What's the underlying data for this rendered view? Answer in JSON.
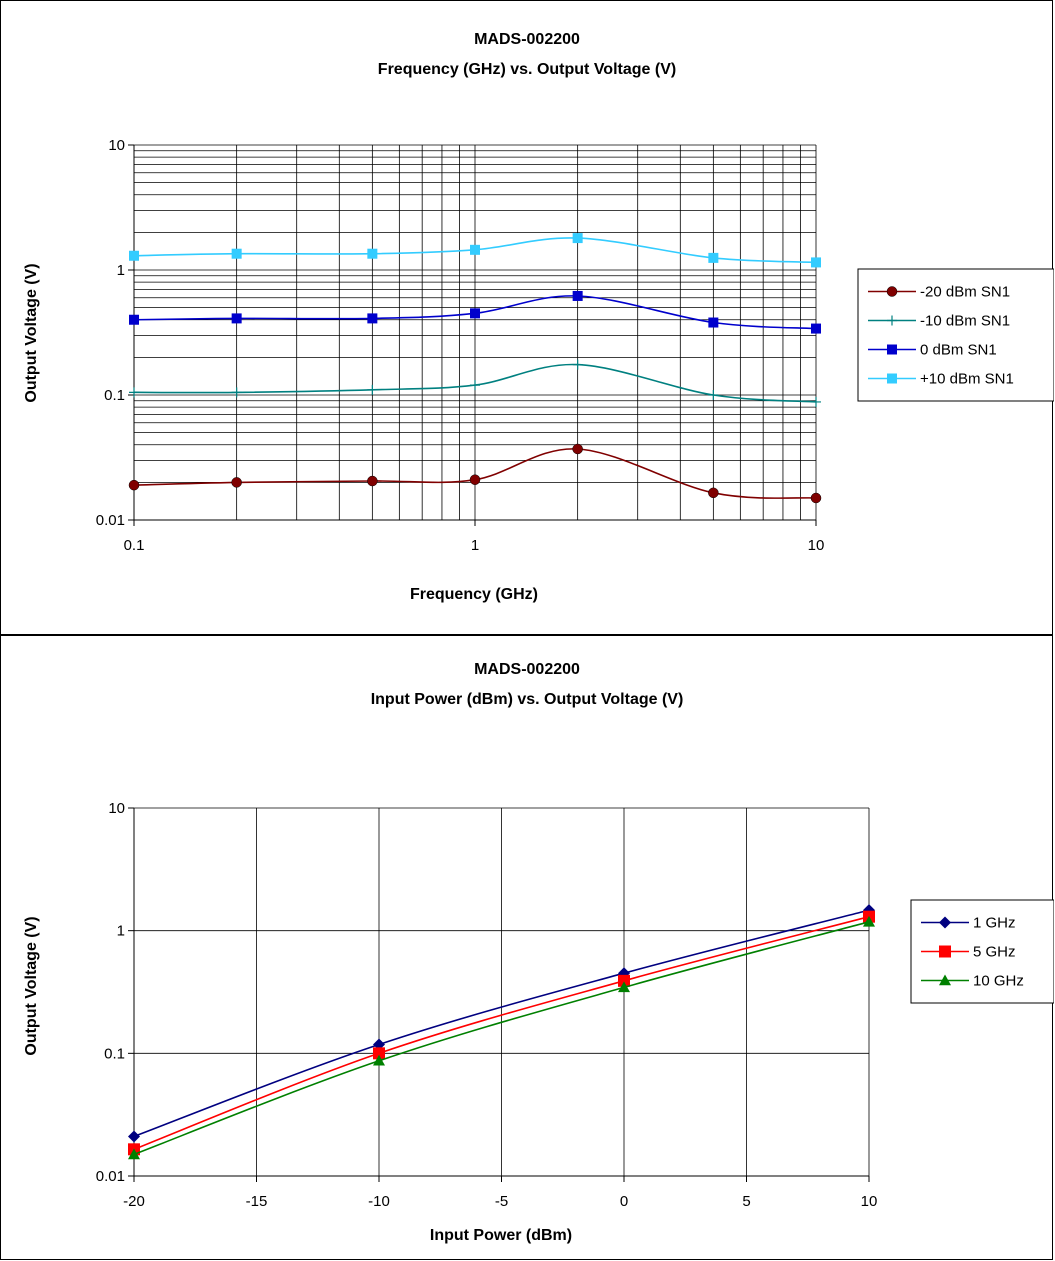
{
  "chart_data": [
    {
      "type": "line",
      "title": "MADS-002200",
      "subtitle": "Frequency (GHz) vs. Output Voltage (V)",
      "xlabel": "Frequency  (GHz)",
      "ylabel": "Output Voltage (V)",
      "xscale": "log",
      "yscale": "log",
      "xlim": [
        0.1,
        10
      ],
      "ylim": [
        0.01,
        10
      ],
      "xticks": [
        "0.1",
        "1",
        "10"
      ],
      "yticks": [
        "0.01",
        "0.1",
        "1",
        "10"
      ],
      "grid": true,
      "legend": "right",
      "series": [
        {
          "name": "-20 dBm SN1",
          "color": "#800000",
          "marker": "circle",
          "x": [
            0.1,
            0.2,
            0.5,
            1,
            2,
            5,
            10
          ],
          "y": [
            0.019,
            0.02,
            0.0205,
            0.021,
            0.037,
            0.0165,
            0.015
          ]
        },
        {
          "name": "-10 dBm SN1",
          "color": "#008080",
          "marker": "plus",
          "x": [
            0.1,
            0.2,
            0.5,
            1,
            2,
            5,
            10
          ],
          "y": [
            0.105,
            0.105,
            0.11,
            0.12,
            0.175,
            0.1,
            0.088
          ]
        },
        {
          "name": "0 dBm SN1",
          "color": "#0000CC",
          "marker": "square",
          "x": [
            0.1,
            0.2,
            0.5,
            1,
            2,
            5,
            10
          ],
          "y": [
            0.4,
            0.41,
            0.41,
            0.45,
            0.62,
            0.38,
            0.34
          ]
        },
        {
          "name": "+10 dBm SN1",
          "color": "#33CCFF",
          "marker": "square",
          "x": [
            0.1,
            0.2,
            0.5,
            1,
            2,
            5,
            10
          ],
          "y": [
            1.3,
            1.35,
            1.35,
            1.45,
            1.8,
            1.25,
            1.15
          ]
        }
      ]
    },
    {
      "type": "line",
      "title": "MADS-002200",
      "subtitle": "Input Power (dBm) vs. Output Voltage (V)",
      "xlabel": "Input Power (dBm)",
      "ylabel": "Output Voltage (V)",
      "xscale": "linear",
      "yscale": "log",
      "xlim": [
        -20,
        10
      ],
      "ylim": [
        0.01,
        10
      ],
      "xticks": [
        "-20",
        "-15",
        "-10",
        "-5",
        "0",
        "5",
        "10"
      ],
      "yticks": [
        "0.01",
        "0.1",
        "1",
        "10"
      ],
      "grid": true,
      "legend": "right",
      "series": [
        {
          "name": "1 GHz",
          "color": "#000080",
          "marker": "diamond",
          "x": [
            -20,
            -10,
            0,
            10
          ],
          "y": [
            0.021,
            0.118,
            0.45,
            1.47
          ]
        },
        {
          "name": "5 GHz",
          "color": "#FF0000",
          "marker": "square",
          "x": [
            -20,
            -10,
            0,
            10
          ],
          "y": [
            0.0165,
            0.1,
            0.39,
            1.3
          ]
        },
        {
          "name": "10 GHz",
          "color": "#008000",
          "marker": "triangle",
          "x": [
            -20,
            -10,
            0,
            10
          ],
          "y": [
            0.015,
            0.087,
            0.345,
            1.18
          ]
        }
      ]
    }
  ]
}
